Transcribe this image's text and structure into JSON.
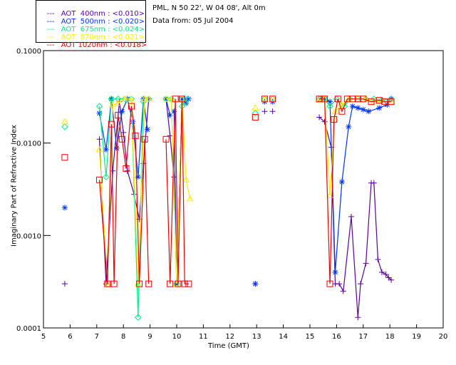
{
  "header": {
    "site": "PML, N 50 22', W 04 08', Alt 0m",
    "date": "Data from: 05 Jul 2004"
  },
  "legend": [
    {
      "dash": "---",
      "label": "AOT  400nm : <0.010>",
      "color": "#5a00a0"
    },
    {
      "dash": "---",
      "label": "AOT  500nm : <0.020>",
      "color": "#0033ff"
    },
    {
      "dash": "---",
      "label": "AOT  675nm : <0.024>",
      "color": "#00ee88"
    },
    {
      "dash": "---",
      "label": "AOT  870nm : <0.021>",
      "color": "#ffee00"
    },
    {
      "dash": "---",
      "label": "AOT 1020nm : <0.018>",
      "color": "#ee0000"
    }
  ],
  "chart_data": {
    "type": "line",
    "title": "",
    "xlabel": "Time (GMT)",
    "ylabel": "Imaginary Part of Refractive Index",
    "xlim": [
      5,
      20
    ],
    "ylim": [
      0.0001,
      0.1
    ],
    "yscale": "log",
    "x_ticks": [
      "5",
      "6",
      "7",
      "8",
      "9",
      "10",
      "11",
      "12",
      "13",
      "14",
      "15",
      "16",
      "17",
      "18",
      "19",
      "20"
    ],
    "y_ticks": [
      "0.0001",
      "0.0010",
      "0.0100",
      "0.1000"
    ],
    "series": [
      {
        "name": "AOT  400nm",
        "color": "#5a00a0",
        "marker": "plus",
        "segments": [
          [
            [
              5.8,
              0.0003
            ]
          ],
          [
            [
              7.1,
              0.011
            ],
            [
              7.35,
              0.0003
            ],
            [
              7.6,
              0.005
            ],
            [
              7.85,
              0.028
            ],
            [
              8.0,
              0.013
            ],
            [
              8.15,
              0.005
            ],
            [
              8.4,
              0.0028
            ],
            [
              8.6,
              0.0015
            ],
            [
              8.75,
              0.006
            ],
            [
              8.95,
              0.03
            ]
          ],
          [
            [
              9.6,
              0.03
            ],
            [
              9.75,
              0.012
            ],
            [
              9.9,
              0.0043
            ],
            [
              10.0,
              0.0003
            ],
            [
              10.2,
              0.03
            ],
            [
              10.3,
              0.03
            ]
          ],
          [
            [
              12.95,
              0.0003
            ]
          ],
          [
            [
              13.3,
              0.022
            ]
          ],
          [
            [
              13.6,
              0.022
            ]
          ],
          [
            [
              15.35,
              0.019
            ],
            [
              15.55,
              0.017
            ],
            [
              15.8,
              0.009
            ],
            [
              15.95,
              0.0003
            ],
            [
              16.1,
              0.0003
            ],
            [
              16.25,
              0.00025
            ],
            [
              16.55,
              0.0016
            ],
            [
              16.8,
              0.00013
            ],
            [
              16.9,
              0.0003
            ],
            [
              17.1,
              0.0005
            ],
            [
              17.3,
              0.0037
            ],
            [
              17.4,
              0.0037
            ],
            [
              17.55,
              0.00055
            ],
            [
              17.7,
              0.0004
            ],
            [
              17.85,
              0.00038
            ],
            [
              17.95,
              0.00035
            ],
            [
              18.05,
              0.00033
            ]
          ]
        ]
      },
      {
        "name": "AOT  500nm",
        "color": "#0033ff",
        "marker": "star",
        "segments": [
          [
            [
              5.8,
              0.002
            ]
          ],
          [
            [
              7.1,
              0.021
            ],
            [
              7.35,
              0.0085
            ],
            [
              7.55,
              0.03
            ],
            [
              7.75,
              0.0088
            ],
            [
              7.95,
              0.022
            ],
            [
              8.15,
              0.03
            ],
            [
              8.35,
              0.017
            ],
            [
              8.55,
              0.0043
            ],
            [
              8.75,
              0.03
            ],
            [
              8.9,
              0.014
            ]
          ],
          [
            [
              9.6,
              0.03
            ],
            [
              9.75,
              0.02
            ],
            [
              9.9,
              0.022
            ],
            [
              10.0,
              0.0003
            ],
            [
              10.2,
              0.03
            ],
            [
              10.35,
              0.027
            ],
            [
              10.45,
              0.03
            ]
          ],
          [
            [
              12.95,
              0.0003
            ]
          ],
          [
            [
              13.3,
              0.028
            ]
          ],
          [
            [
              13.6,
              0.028
            ]
          ],
          [
            [
              15.4,
              0.03
            ],
            [
              15.55,
              0.03
            ],
            [
              15.75,
              0.028
            ],
            [
              15.95,
              0.0004
            ],
            [
              16.2,
              0.0038
            ],
            [
              16.45,
              0.015
            ],
            [
              16.6,
              0.025
            ],
            [
              16.8,
              0.024
            ],
            [
              17.0,
              0.023
            ],
            [
              17.2,
              0.022
            ],
            [
              17.6,
              0.024
            ],
            [
              17.9,
              0.026
            ],
            [
              18.05,
              0.03
            ]
          ]
        ]
      },
      {
        "name": "AOT  675nm",
        "color": "#00ee88",
        "marker": "diamond",
        "segments": [
          [
            [
              5.8,
              0.015
            ]
          ],
          [
            [
              7.1,
              0.025
            ],
            [
              7.35,
              0.0043
            ],
            [
              7.55,
              0.03
            ],
            [
              7.8,
              0.03
            ],
            [
              8.05,
              0.03
            ],
            [
              8.3,
              0.03
            ],
            [
              8.55,
              0.00013
            ],
            [
              8.75,
              0.028
            ],
            [
              8.95,
              0.03
            ]
          ],
          [
            [
              9.6,
              0.03
            ],
            [
              9.8,
              0.03
            ],
            [
              10.0,
              0.0003
            ],
            [
              10.2,
              0.025
            ],
            [
              10.3,
              0.028
            ],
            [
              10.4,
              0.03
            ]
          ],
          [
            [
              12.95,
              0.021
            ]
          ],
          [
            [
              13.3,
              0.03
            ]
          ],
          [
            [
              13.6,
              0.03
            ]
          ],
          [
            [
              15.35,
              0.03
            ],
            [
              15.55,
              0.03
            ],
            [
              15.75,
              0.025
            ],
            [
              16.0,
              0.03
            ],
            [
              16.3,
              0.025
            ],
            [
              16.5,
              0.03
            ],
            [
              16.8,
              0.03
            ],
            [
              17.1,
              0.03
            ],
            [
              17.4,
              0.03
            ],
            [
              17.7,
              0.029
            ],
            [
              18.05,
              0.03
            ]
          ]
        ]
      },
      {
        "name": "AOT  870nm",
        "color": "#ffee00",
        "marker": "triangle",
        "segments": [
          [
            [
              5.8,
              0.017
            ]
          ],
          [
            [
              7.1,
              0.0085
            ],
            [
              7.4,
              0.0003
            ],
            [
              7.6,
              0.026
            ],
            [
              7.8,
              0.027
            ],
            [
              8.05,
              0.03
            ],
            [
              8.3,
              0.03
            ],
            [
              8.55,
              0.0003
            ],
            [
              8.8,
              0.03
            ],
            [
              8.95,
              0.03
            ]
          ],
          [
            [
              9.6,
              0.03
            ],
            [
              9.8,
              0.03
            ],
            [
              10.0,
              0.0003
            ],
            [
              10.2,
              0.03
            ],
            [
              10.35,
              0.004
            ],
            [
              10.5,
              0.0025
            ]
          ],
          [
            [
              12.95,
              0.024
            ]
          ],
          [
            [
              13.3,
              0.03
            ]
          ],
          [
            [
              13.6,
              0.03
            ]
          ],
          [
            [
              15.35,
              0.029
            ],
            [
              15.55,
              0.03
            ],
            [
              15.75,
              0.0027
            ],
            [
              15.95,
              0.022
            ],
            [
              16.2,
              0.026
            ],
            [
              16.45,
              0.03
            ],
            [
              16.8,
              0.03
            ],
            [
              17.1,
              0.03
            ],
            [
              17.4,
              0.028
            ],
            [
              17.7,
              0.028
            ],
            [
              18.05,
              0.028
            ]
          ]
        ]
      },
      {
        "name": "AOT 1020nm",
        "color": "#ee0000",
        "marker": "square",
        "segments": [
          [
            [
              5.8,
              0.007
            ]
          ],
          [
            [
              7.1,
              0.004
            ],
            [
              7.4,
              0.0003
            ],
            [
              7.55,
              0.016
            ],
            [
              7.65,
              0.0003
            ],
            [
              7.8,
              0.02
            ],
            [
              7.95,
              0.011
            ],
            [
              8.1,
              0.0053
            ],
            [
              8.3,
              0.025
            ],
            [
              8.45,
              0.012
            ],
            [
              8.6,
              0.0003
            ],
            [
              8.8,
              0.011
            ],
            [
              8.95,
              0.0003
            ]
          ],
          [
            [
              9.6,
              0.011
            ],
            [
              9.75,
              0.0003
            ],
            [
              9.95,
              0.03
            ],
            [
              10.05,
              0.0003
            ],
            [
              10.2,
              0.03
            ],
            [
              10.3,
              0.0003
            ],
            [
              10.45,
              0.0003
            ]
          ],
          [
            [
              12.95,
              0.019
            ]
          ],
          [
            [
              13.3,
              0.03
            ]
          ],
          [
            [
              13.6,
              0.03
            ]
          ],
          [
            [
              15.35,
              0.03
            ],
            [
              15.55,
              0.03
            ],
            [
              15.75,
              0.0003
            ],
            [
              15.9,
              0.018
            ],
            [
              16.05,
              0.03
            ],
            [
              16.2,
              0.022
            ],
            [
              16.4,
              0.03
            ],
            [
              16.6,
              0.03
            ],
            [
              16.8,
              0.03
            ],
            [
              17.0,
              0.03
            ],
            [
              17.3,
              0.028
            ],
            [
              17.6,
              0.029
            ],
            [
              17.8,
              0.028
            ],
            [
              18.05,
              0.028
            ]
          ]
        ]
      }
    ]
  }
}
